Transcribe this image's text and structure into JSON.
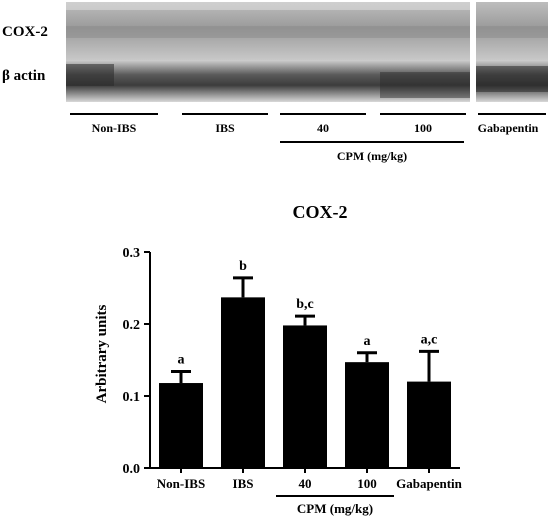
{
  "blot": {
    "rows": [
      {
        "label": "COX-2"
      },
      {
        "label": "β actin"
      }
    ],
    "groups": [
      {
        "label": "Non-IBS"
      },
      {
        "label": "IBS"
      },
      {
        "label": "40"
      },
      {
        "label": "100"
      },
      {
        "label": "Gabapentin"
      }
    ],
    "bracket_label": "CPM (mg/kg)"
  },
  "chart_data": {
    "type": "bar",
    "title": "COX-2",
    "xlabel": "",
    "ylabel": "Arbitrary units",
    "categories": [
      "Non-IBS",
      "IBS",
      "40",
      "100",
      "Gabapentin"
    ],
    "values": [
      0.118,
      0.237,
      0.198,
      0.147,
      0.12
    ],
    "errors": [
      0.016,
      0.027,
      0.013,
      0.013,
      0.042
    ],
    "annotations": [
      "a",
      "b",
      "b,c",
      "a",
      "a,c"
    ],
    "ylim": [
      0.0,
      0.3
    ],
    "yticks": [
      "0.0",
      "0.1",
      "0.2",
      "0.3"
    ],
    "bracket": {
      "label": "CPM (mg/kg)",
      "categories": [
        "40",
        "100"
      ]
    },
    "grid": false,
    "legend": "none",
    "bar_color": "#000000"
  }
}
